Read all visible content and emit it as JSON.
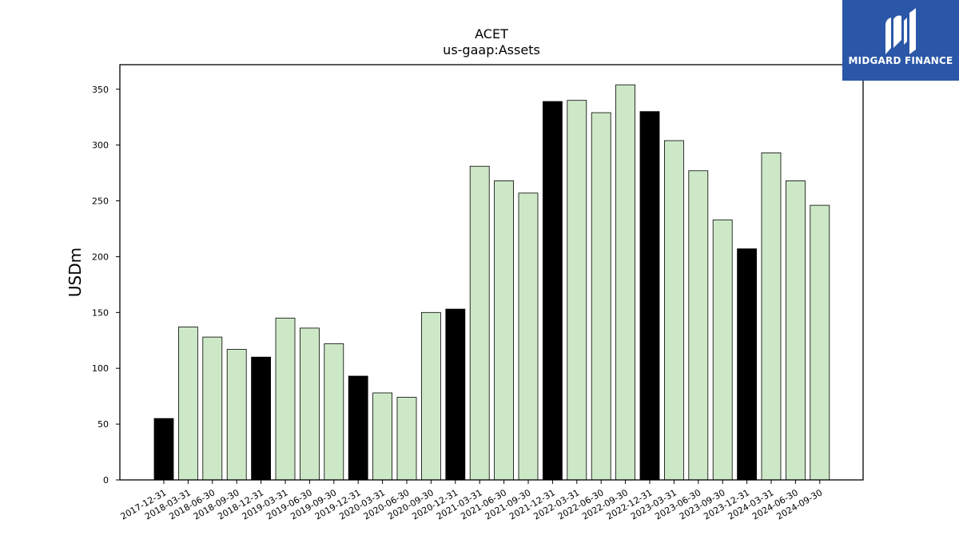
{
  "chart_data": {
    "type": "bar",
    "title": "ACET",
    "subtitle": "us-gaap:Assets",
    "xlabel": "",
    "ylabel": "USDm",
    "ylim": [
      0,
      372
    ],
    "yticks": [
      0,
      50,
      100,
      150,
      200,
      250,
      300,
      350
    ],
    "categories": [
      "2017-12-31",
      "2018-03-31",
      "2018-06-30",
      "2018-09-30",
      "2018-12-31",
      "2019-03-31",
      "2019-06-30",
      "2019-09-30",
      "2019-12-31",
      "2020-03-31",
      "2020-06-30",
      "2020-09-30",
      "2020-12-31",
      "2021-03-31",
      "2021-06-30",
      "2021-09-30",
      "2021-12-31",
      "2022-03-31",
      "2022-06-30",
      "2022-09-30",
      "2022-12-31",
      "2023-03-31",
      "2023-06-30",
      "2023-09-30",
      "2023-12-31",
      "2024-03-31",
      "2024-06-30",
      "2024-09-30"
    ],
    "values": [
      55,
      137,
      128,
      117,
      110,
      145,
      136,
      122,
      93,
      78,
      74,
      150,
      153,
      281,
      268,
      257,
      339,
      340,
      329,
      354,
      330,
      304,
      277,
      233,
      207,
      293,
      268,
      246
    ],
    "bar_colors": {
      "year_end": "#000000",
      "quarter": "#cde8c6",
      "edge": "#000000"
    },
    "grid": false,
    "legend": "none"
  },
  "logo": {
    "text": "MIDGARD FINANCE",
    "icon": "midgard-logo-icon",
    "color": "#2b57a8"
  }
}
